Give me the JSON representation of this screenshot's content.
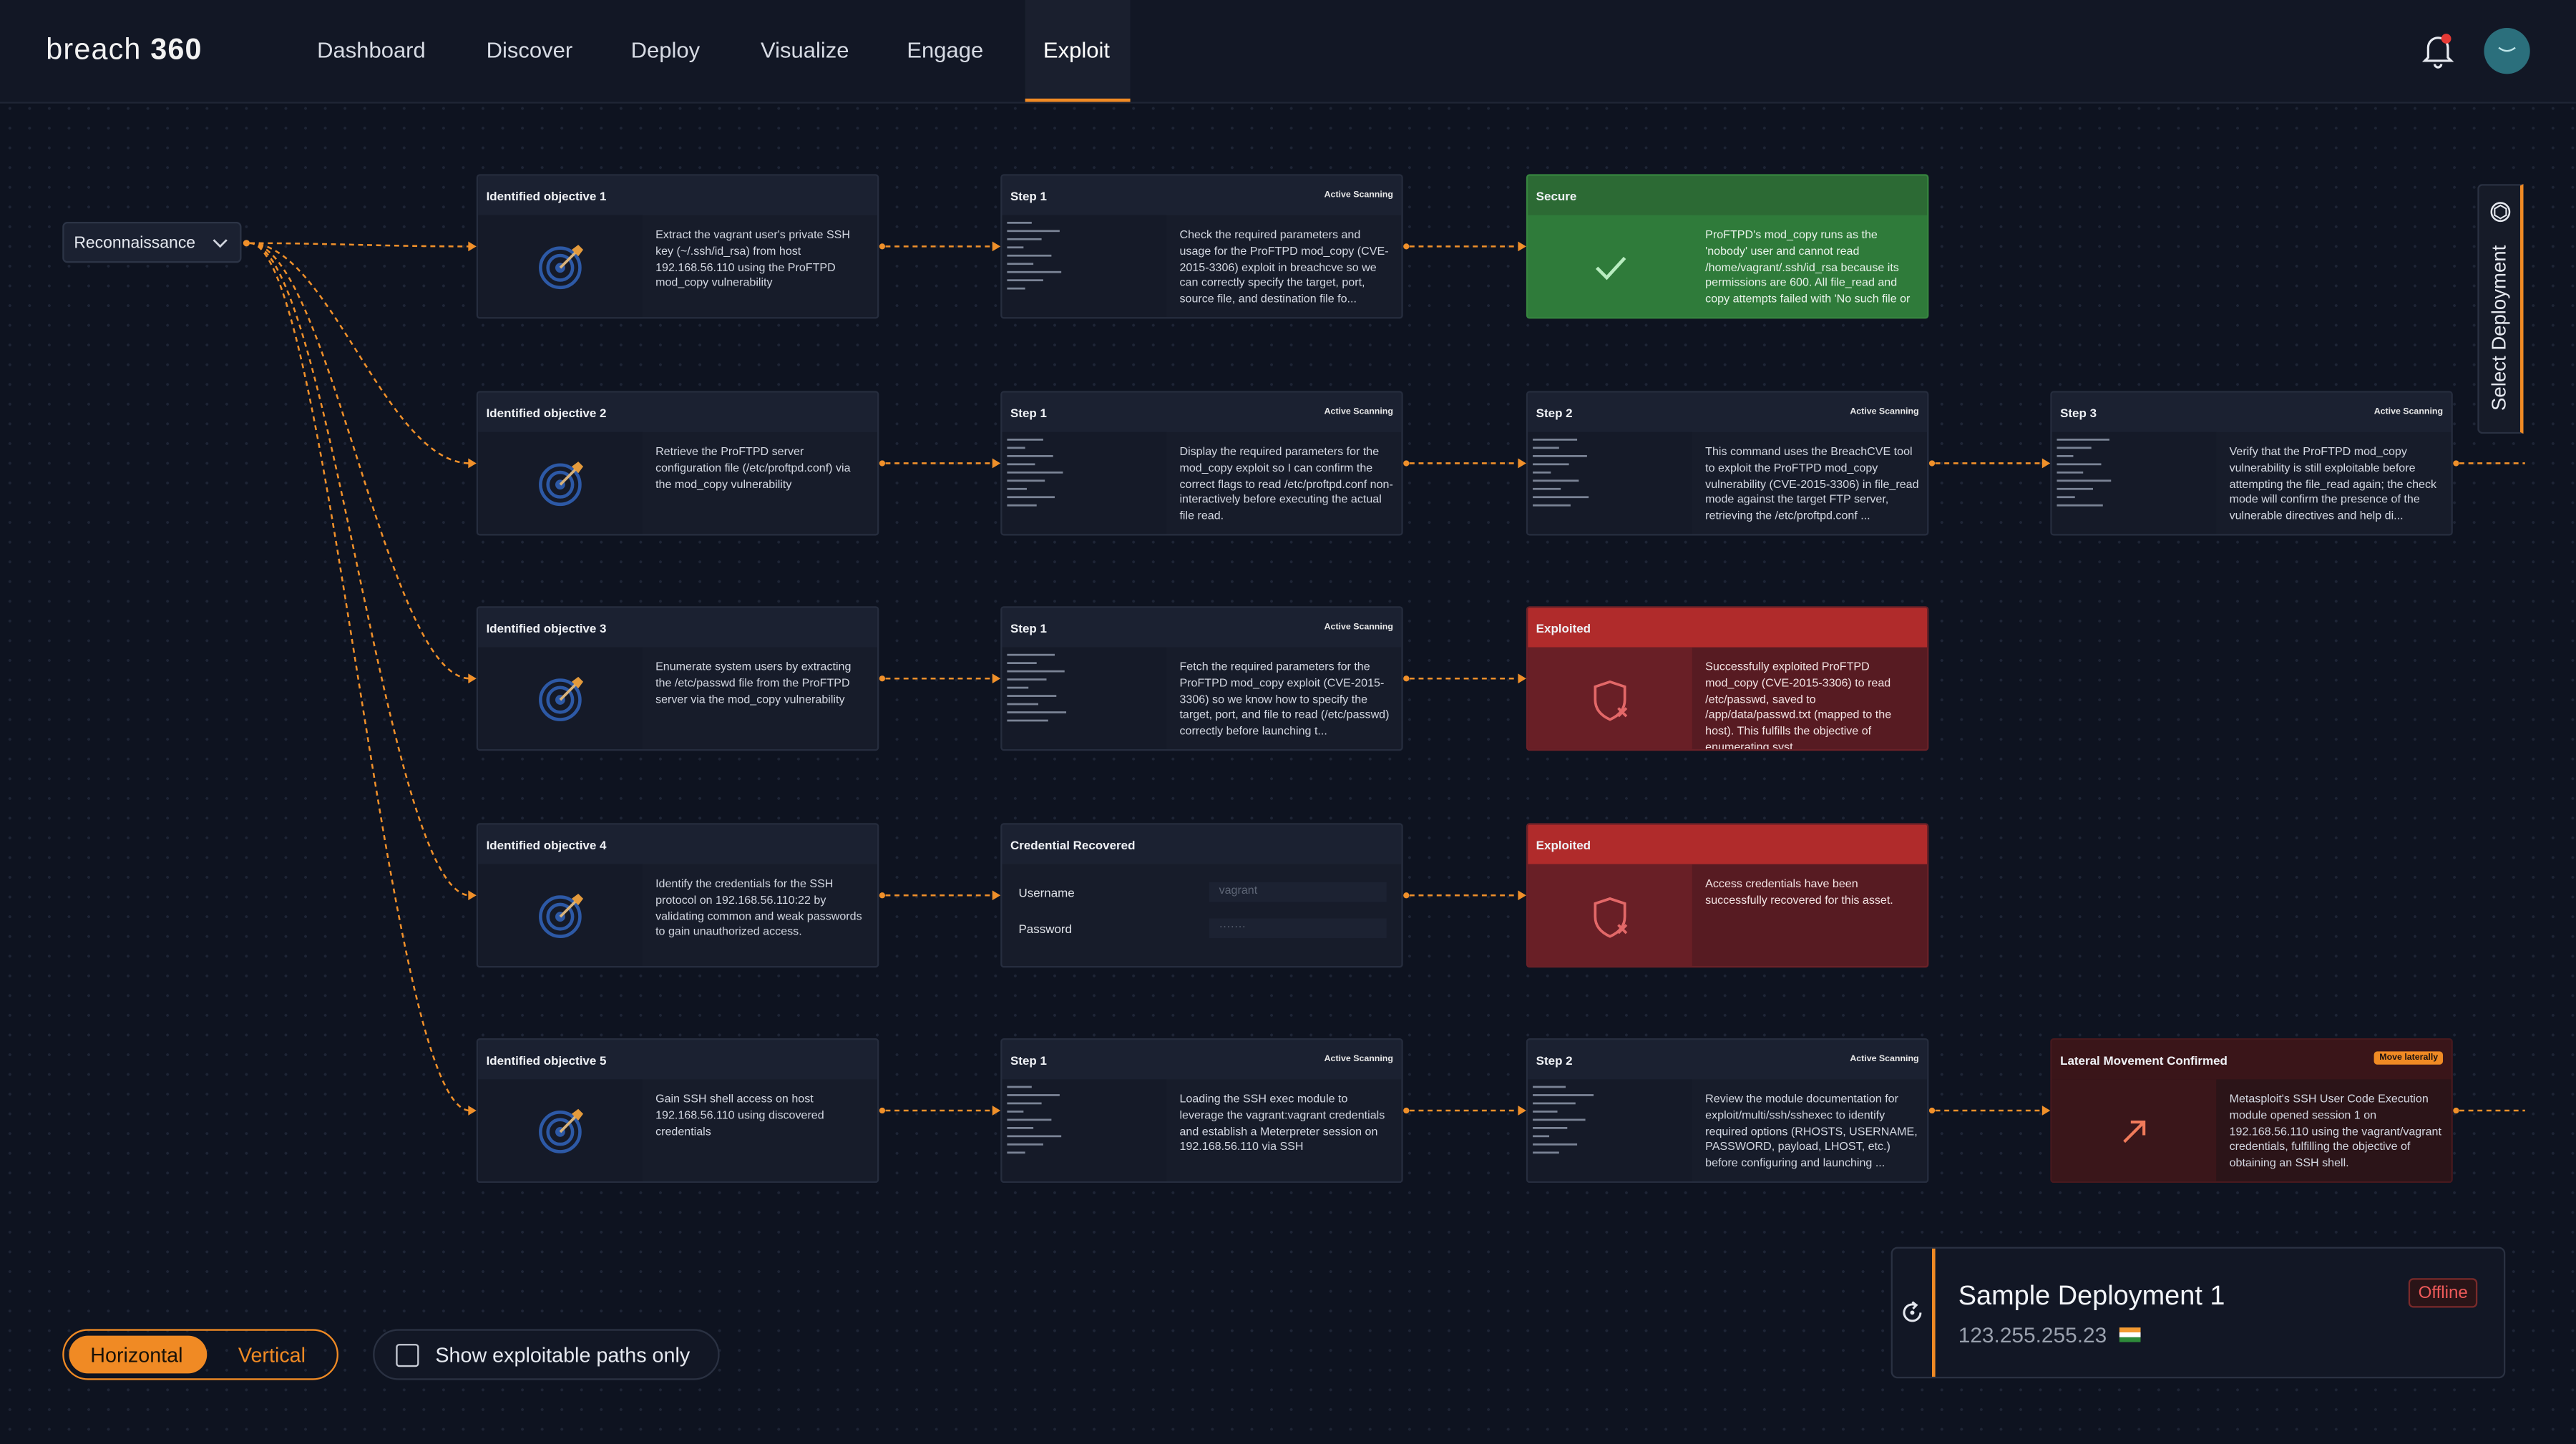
{
  "header": {
    "brand": {
      "word": "breach",
      "number": "360"
    },
    "menu": [
      "Dashboard",
      "Discover",
      "Deploy",
      "Visualize",
      "Engage",
      "Exploit"
    ],
    "active": "Exploit"
  },
  "stage": "Reconnaissance",
  "rows": [
    {
      "cards": [
        {
          "kind": "objective",
          "title": "Identified objective 1",
          "text": "Extract the vagrant user's private SSH key (~/.ssh/id_rsa) from host 192.168.56.110 using the ProFTPD mod_copy vulnerability"
        },
        {
          "kind": "step",
          "title": "Step 1",
          "badge": "Active Scanning",
          "text": "Check the required parameters and usage for the ProFTPD mod_copy (CVE-2015-3306) exploit in breachcve so we can correctly specify the target, port, source file, and destination file fo..."
        },
        {
          "kind": "secure",
          "title": "Secure",
          "text": "ProFTPD's mod_copy runs as the 'nobody' user and cannot read /home/vagrant/.ssh/id_rsa because its permissions are 600. All file_read and copy attempts failed with 'No such file or ..."
        }
      ]
    },
    {
      "cards": [
        {
          "kind": "objective",
          "title": "Identified objective 2",
          "text": "Retrieve the ProFTPD server configuration file (/etc/proftpd.conf) via the mod_copy vulnerability"
        },
        {
          "kind": "step",
          "title": "Step 1",
          "badge": "Active Scanning",
          "text": "Display the required parameters for the mod_copy exploit so I can confirm the correct flags to read /etc/proftpd.conf non-interactively before executing the actual file read."
        },
        {
          "kind": "step",
          "title": "Step 2",
          "badge": "Active Scanning",
          "text": "This command uses the BreachCVE tool to exploit the ProFTPD mod_copy vulnerability (CVE-2015-3306) in file_read mode against the target FTP server, retrieving the /etc/proftpd.conf ..."
        },
        {
          "kind": "step",
          "title": "Step 3",
          "badge": "Active Scanning",
          "text": "Verify that the ProFTPD mod_copy vulnerability is still exploitable before attempting the file_read again; the check mode will confirm the presence of the vulnerable directives and help di..."
        }
      ]
    },
    {
      "cards": [
        {
          "kind": "objective",
          "title": "Identified objective 3",
          "text": "Enumerate system users by extracting the /etc/passwd file from the ProFTPD server via the mod_copy vulnerability"
        },
        {
          "kind": "step",
          "title": "Step 1",
          "badge": "Active Scanning",
          "text": "Fetch the required parameters for the ProFTPD mod_copy exploit (CVE-2015-3306) so we know how to specify the target, port, and file to read (/etc/passwd) correctly before launching t..."
        },
        {
          "kind": "exploited",
          "title": "Exploited",
          "text": "Successfully exploited ProFTPD mod_copy (CVE-2015-3306) to read /etc/passwd, saved to /app/data/passwd.txt (mapped to the host). This fulfills the objective of enumerating syst..."
        }
      ]
    },
    {
      "cards": [
        {
          "kind": "objective",
          "title": "Identified objective 4",
          "text": "Identify the credentials for the SSH protocol on 192.168.56.110:22 by validating common and weak passwords to gain unauthorized access."
        },
        {
          "kind": "credential",
          "title": "Credential Recovered",
          "fields": [
            {
              "label": "Username",
              "value": "vagrant"
            },
            {
              "label": "Password",
              "value": "·······"
            }
          ]
        },
        {
          "kind": "exploited",
          "title": "Exploited",
          "text": "Access credentials have been successfully recovered for this asset."
        }
      ]
    },
    {
      "cards": [
        {
          "kind": "objective",
          "title": "Identified objective 5",
          "text": "Gain SSH shell access on host 192.168.56.110 using discovered credentials"
        },
        {
          "kind": "step",
          "title": "Step 1",
          "badge": "Active Scanning",
          "text": "Loading the SSH exec module to leverage the vagrant:vagrant credentials and establish a Meterpreter session on 192.168.56.110 via SSH"
        },
        {
          "kind": "step",
          "title": "Step 2",
          "badge": "Active Scanning",
          "text": "Review the module documentation for exploit/multi/ssh/sshexec to identify required options (RHOSTS, USERNAME, PASSWORD, payload, LHOST, etc.) before configuring and launching ..."
        },
        {
          "kind": "lateral",
          "title": "Lateral Movement Confirmed",
          "badge": "Move laterally",
          "text": "Metasploit's SSH User Code Execution module opened session 1 on 192.168.56.110 using the vagrant/vagrant credentials, fulfilling the objective of obtaining an SSH shell."
        }
      ]
    }
  ],
  "side_tab": "Select Deployment",
  "layout_toggle": [
    "Horizontal",
    "Vertical"
  ],
  "filter": "Show exploitable paths only",
  "deployment": {
    "name": "Sample Deployment 1",
    "status": "Offline",
    "ip": "123.255.255.23"
  }
}
